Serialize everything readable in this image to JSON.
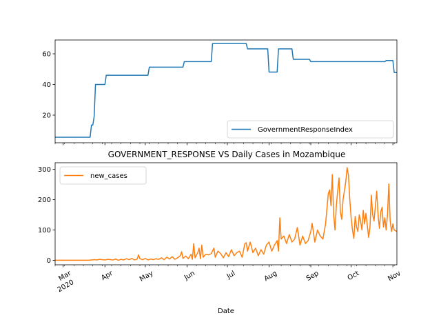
{
  "chart_data": [
    {
      "type": "line",
      "title": "",
      "xlabel": "",
      "ylabel": "",
      "x_range": [
        "2020-02-24",
        "2020-11-04"
      ],
      "ylim": [
        2,
        69
      ],
      "yticks": [
        20,
        40,
        60
      ],
      "grid": false,
      "legend_placement": "lower-right",
      "series": [
        {
          "name": "GovernmentResponseIndex",
          "color": "#1f77b4",
          "points": [
            [
              "2020-02-24",
              5.6
            ],
            [
              "2020-03-21",
              5.6
            ],
            [
              "2020-03-22",
              13.5
            ],
            [
              "2020-03-23",
              13.5
            ],
            [
              "2020-03-24",
              19.0
            ],
            [
              "2020-03-25",
              40.0
            ],
            [
              "2020-04-01",
              40.0
            ],
            [
              "2020-04-02",
              46.0
            ],
            [
              "2020-05-03",
              46.0
            ],
            [
              "2020-05-04",
              51.3
            ],
            [
              "2020-05-29",
              51.3
            ],
            [
              "2020-05-30",
              54.9
            ],
            [
              "2020-06-19",
              54.9
            ],
            [
              "2020-06-20",
              66.7
            ],
            [
              "2020-07-15",
              66.7
            ],
            [
              "2020-07-16",
              63.2
            ],
            [
              "2020-07-31",
              63.2
            ],
            [
              "2020-08-01",
              48.1
            ],
            [
              "2020-08-07",
              48.1
            ],
            [
              "2020-08-08",
              63.2
            ],
            [
              "2020-08-18",
              63.2
            ],
            [
              "2020-08-19",
              56.4
            ],
            [
              "2020-08-31",
              56.4
            ],
            [
              "2020-09-01",
              54.9
            ],
            [
              "2020-10-26",
              54.9
            ],
            [
              "2020-10-27",
              55.6
            ],
            [
              "2020-11-01",
              55.6
            ],
            [
              "2020-11-02",
              47.8
            ],
            [
              "2020-11-04",
              47.8
            ]
          ]
        }
      ]
    },
    {
      "type": "line",
      "title": "GOVERNMENT_RESPONSE VS Daily Cases in Mozambique",
      "xlabel": "Date",
      "ylabel": "",
      "x_range": [
        "2020-02-24",
        "2020-11-04"
      ],
      "ylim": [
        -15,
        322
      ],
      "yticks": [
        0,
        100,
        200,
        300
      ],
      "grid": false,
      "legend_placement": "upper-left",
      "x_major_ticks": [
        {
          "date": "2020-03-01",
          "label": "Mar",
          "sublabel": "2020"
        },
        {
          "date": "2020-04-01",
          "label": "Apr",
          "sublabel": ""
        },
        {
          "date": "2020-05-01",
          "label": "May",
          "sublabel": ""
        },
        {
          "date": "2020-06-01",
          "label": "Jun",
          "sublabel": ""
        },
        {
          "date": "2020-07-01",
          "label": "Jul",
          "sublabel": ""
        },
        {
          "date": "2020-08-01",
          "label": "Aug",
          "sublabel": ""
        },
        {
          "date": "2020-09-01",
          "label": "Sep",
          "sublabel": ""
        },
        {
          "date": "2020-10-01",
          "label": "Oct",
          "sublabel": ""
        },
        {
          "date": "2020-11-01",
          "label": "Nov",
          "sublabel": ""
        }
      ],
      "series": [
        {
          "name": "new_cases",
          "color": "#ff7f0e",
          "points": [
            [
              "2020-02-24",
              0
            ],
            [
              "2020-03-20",
              0
            ],
            [
              "2020-03-22",
              1
            ],
            [
              "2020-03-24",
              2
            ],
            [
              "2020-03-26",
              1
            ],
            [
              "2020-03-28",
              3
            ],
            [
              "2020-03-30",
              2
            ],
            [
              "2020-04-01",
              1
            ],
            [
              "2020-04-03",
              3
            ],
            [
              "2020-04-05",
              2
            ],
            [
              "2020-04-07",
              1
            ],
            [
              "2020-04-09",
              4
            ],
            [
              "2020-04-11",
              0
            ],
            [
              "2020-04-13",
              3
            ],
            [
              "2020-04-15",
              1
            ],
            [
              "2020-04-17",
              5
            ],
            [
              "2020-04-19",
              2
            ],
            [
              "2020-04-21",
              6
            ],
            [
              "2020-04-23",
              1
            ],
            [
              "2020-04-25",
              4
            ],
            [
              "2020-04-26",
              18
            ],
            [
              "2020-04-27",
              5
            ],
            [
              "2020-04-29",
              2
            ],
            [
              "2020-05-01",
              6
            ],
            [
              "2020-05-03",
              1
            ],
            [
              "2020-05-05",
              4
            ],
            [
              "2020-05-07",
              2
            ],
            [
              "2020-05-09",
              5
            ],
            [
              "2020-05-11",
              3
            ],
            [
              "2020-05-13",
              8
            ],
            [
              "2020-05-15",
              2
            ],
            [
              "2020-05-17",
              10
            ],
            [
              "2020-05-19",
              4
            ],
            [
              "2020-05-21",
              12
            ],
            [
              "2020-05-23",
              3
            ],
            [
              "2020-05-25",
              8
            ],
            [
              "2020-05-27",
              15
            ],
            [
              "2020-05-28",
              28
            ],
            [
              "2020-05-29",
              6
            ],
            [
              "2020-05-31",
              14
            ],
            [
              "2020-06-02",
              5
            ],
            [
              "2020-06-04",
              20
            ],
            [
              "2020-06-05",
              3
            ],
            [
              "2020-06-06",
              55
            ],
            [
              "2020-06-07",
              8
            ],
            [
              "2020-06-09",
              25
            ],
            [
              "2020-06-10",
              40
            ],
            [
              "2020-06-11",
              5
            ],
            [
              "2020-06-12",
              50
            ],
            [
              "2020-06-13",
              10
            ],
            [
              "2020-06-15",
              20
            ],
            [
              "2020-06-17",
              18
            ],
            [
              "2020-06-19",
              22
            ],
            [
              "2020-06-21",
              40
            ],
            [
              "2020-06-22",
              10
            ],
            [
              "2020-06-24",
              30
            ],
            [
              "2020-06-26",
              22
            ],
            [
              "2020-06-28",
              8
            ],
            [
              "2020-06-30",
              25
            ],
            [
              "2020-07-02",
              12
            ],
            [
              "2020-07-04",
              35
            ],
            [
              "2020-07-06",
              15
            ],
            [
              "2020-07-08",
              25
            ],
            [
              "2020-07-10",
              30
            ],
            [
              "2020-07-12",
              10
            ],
            [
              "2020-07-14",
              55
            ],
            [
              "2020-07-15",
              58
            ],
            [
              "2020-07-16",
              30
            ],
            [
              "2020-07-18",
              60
            ],
            [
              "2020-07-20",
              25
            ],
            [
              "2020-07-22",
              40
            ],
            [
              "2020-07-24",
              15
            ],
            [
              "2020-07-26",
              35
            ],
            [
              "2020-07-28",
              20
            ],
            [
              "2020-07-30",
              50
            ],
            [
              "2020-08-01",
              60
            ],
            [
              "2020-08-03",
              30
            ],
            [
              "2020-08-05",
              50
            ],
            [
              "2020-08-07",
              65
            ],
            [
              "2020-08-08",
              30
            ],
            [
              "2020-08-09",
              140
            ],
            [
              "2020-08-10",
              70
            ],
            [
              "2020-08-12",
              80
            ],
            [
              "2020-08-14",
              55
            ],
            [
              "2020-08-16",
              85
            ],
            [
              "2020-08-18",
              60
            ],
            [
              "2020-08-20",
              70
            ],
            [
              "2020-08-22",
              108
            ],
            [
              "2020-08-24",
              50
            ],
            [
              "2020-08-26",
              80
            ],
            [
              "2020-08-28",
              55
            ],
            [
              "2020-08-30",
              65
            ],
            [
              "2020-09-01",
              95
            ],
            [
              "2020-09-02",
              122
            ],
            [
              "2020-09-04",
              60
            ],
            [
              "2020-09-06",
              100
            ],
            [
              "2020-09-08",
              80
            ],
            [
              "2020-09-10",
              70
            ],
            [
              "2020-09-12",
              120
            ],
            [
              "2020-09-14",
              220
            ],
            [
              "2020-09-15",
              232
            ],
            [
              "2020-09-16",
              180
            ],
            [
              "2020-09-17",
              283
            ],
            [
              "2020-09-18",
              150
            ],
            [
              "2020-09-19",
              100
            ],
            [
              "2020-09-20",
              180
            ],
            [
              "2020-09-21",
              230
            ],
            [
              "2020-09-22",
              272
            ],
            [
              "2020-09-23",
              160
            ],
            [
              "2020-09-24",
              135
            ],
            [
              "2020-09-25",
              200
            ],
            [
              "2020-09-27",
              260
            ],
            [
              "2020-09-28",
              306
            ],
            [
              "2020-09-29",
              280
            ],
            [
              "2020-09-30",
              200
            ],
            [
              "2020-10-01",
              140
            ],
            [
              "2020-10-02",
              100
            ],
            [
              "2020-10-03",
              72
            ],
            [
              "2020-10-04",
              145
            ],
            [
              "2020-10-05",
              110
            ],
            [
              "2020-10-06",
              95
            ],
            [
              "2020-10-07",
              150
            ],
            [
              "2020-10-08",
              130
            ],
            [
              "2020-10-09",
              100
            ],
            [
              "2020-10-10",
              165
            ],
            [
              "2020-10-11",
              120
            ],
            [
              "2020-10-12",
              155
            ],
            [
              "2020-10-14",
              75
            ],
            [
              "2020-10-15",
              110
            ],
            [
              "2020-10-16",
              215
            ],
            [
              "2020-10-17",
              150
            ],
            [
              "2020-10-18",
              130
            ],
            [
              "2020-10-20",
              228
            ],
            [
              "2020-10-21",
              150
            ],
            [
              "2020-10-22",
              105
            ],
            [
              "2020-10-23",
              160
            ],
            [
              "2020-10-24",
              175
            ],
            [
              "2020-10-25",
              110
            ],
            [
              "2020-10-26",
              140
            ],
            [
              "2020-10-27",
              100
            ],
            [
              "2020-10-28",
              150
            ],
            [
              "2020-10-29",
              252
            ],
            [
              "2020-10-30",
              130
            ],
            [
              "2020-10-31",
              95
            ],
            [
              "2020-11-01",
              120
            ],
            [
              "2020-11-02",
              100
            ],
            [
              "2020-11-04",
              95
            ]
          ]
        }
      ]
    }
  ]
}
